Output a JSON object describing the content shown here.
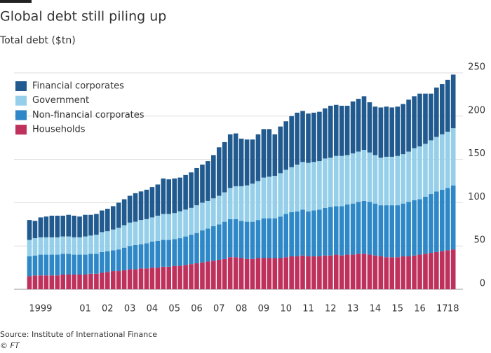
{
  "chart_data": {
    "type": "stacked_bar",
    "title": "Global debt still piling up",
    "subtitle": "Total debt ($tn)",
    "source": "Source: Institute of International Finance",
    "credit": "© FT",
    "categories": [
      null,
      null,
      "1999",
      null,
      null,
      null,
      null,
      null,
      null,
      null,
      "01",
      null,
      null,
      null,
      "02",
      null,
      null,
      null,
      "03",
      null,
      null,
      null,
      "04",
      null,
      null,
      null,
      "05",
      null,
      null,
      null,
      "06",
      null,
      null,
      null,
      "07",
      null,
      null,
      null,
      "08",
      null,
      null,
      null,
      "09",
      null,
      null,
      null,
      "10",
      null,
      null,
      null,
      "11",
      null,
      null,
      null,
      "12",
      null,
      null,
      null,
      "13",
      null,
      null,
      null,
      "14",
      null,
      null,
      null,
      "15",
      null,
      null,
      null,
      "16",
      null,
      null,
      null,
      "17",
      null,
      "18"
    ],
    "series": [
      {
        "name": "Households",
        "color": "#bf315d",
        "values": [
          15,
          16,
          16,
          16,
          16,
          16,
          17,
          17,
          17,
          17,
          17,
          18,
          18,
          19,
          20,
          21,
          21,
          22,
          23,
          23,
          24,
          24,
          25,
          25,
          26,
          26,
          27,
          27,
          28,
          29,
          30,
          31,
          32,
          33,
          34,
          35,
          37,
          37,
          36,
          35,
          35,
          36,
          36,
          36,
          36,
          36,
          37,
          38,
          38,
          39,
          38,
          38,
          38,
          39,
          39,
          40,
          39,
          40,
          40,
          41,
          41,
          40,
          39,
          38,
          37,
          37,
          37,
          38,
          38,
          39,
          40,
          41,
          42,
          43,
          44,
          45,
          46
        ]
      },
      {
        "name": "Non-financial corporates",
        "color": "#2e88c7",
        "values": [
          23,
          23,
          24,
          24,
          24,
          24,
          24,
          24,
          23,
          23,
          23,
          23,
          23,
          24,
          24,
          24,
          25,
          26,
          27,
          28,
          28,
          29,
          30,
          31,
          31,
          31,
          31,
          32,
          33,
          34,
          35,
          37,
          38,
          40,
          41,
          43,
          44,
          44,
          43,
          43,
          43,
          44,
          46,
          46,
          46,
          48,
          50,
          51,
          52,
          53,
          52,
          53,
          54,
          55,
          56,
          56,
          57,
          58,
          59,
          60,
          61,
          61,
          60,
          59,
          60,
          60,
          60,
          61,
          63,
          64,
          64,
          66,
          68,
          70,
          71,
          72,
          74
        ]
      },
      {
        "name": "Government",
        "color": "#95cfea",
        "values": [
          19,
          20,
          20,
          20,
          20,
          20,
          20,
          20,
          20,
          20,
          21,
          21,
          22,
          23,
          23,
          24,
          25,
          26,
          27,
          27,
          28,
          28,
          28,
          29,
          30,
          30,
          30,
          31,
          31,
          31,
          32,
          32,
          32,
          32,
          33,
          34,
          36,
          38,
          40,
          42,
          44,
          45,
          47,
          48,
          49,
          50,
          51,
          52,
          54,
          55,
          56,
          56,
          56,
          57,
          57,
          58,
          58,
          57,
          58,
          58,
          59,
          57,
          56,
          55,
          56,
          56,
          57,
          57,
          58,
          60,
          61,
          61,
          62,
          63,
          64,
          65,
          66
        ]
      },
      {
        "name": "Financial corporates",
        "color": "#215a8e",
        "values": [
          23,
          20,
          23,
          24,
          25,
          25,
          24,
          25,
          25,
          24,
          25,
          24,
          24,
          25,
          26,
          27,
          29,
          30,
          31,
          33,
          33,
          34,
          35,
          36,
          41,
          40,
          40,
          39,
          40,
          41,
          43,
          44,
          46,
          50,
          56,
          58,
          62,
          61,
          55,
          53,
          51,
          54,
          56,
          55,
          48,
          54,
          56,
          59,
          60,
          59,
          57,
          57,
          57,
          58,
          60,
          59,
          58,
          57,
          60,
          61,
          62,
          58,
          56,
          58,
          58,
          57,
          57,
          58,
          60,
          60,
          61,
          58,
          54,
          57,
          58,
          60,
          62
        ]
      }
    ],
    "ylim": [
      0,
      250
    ],
    "yticks": [
      0,
      50,
      100,
      150,
      200,
      250
    ],
    "grid": true
  }
}
